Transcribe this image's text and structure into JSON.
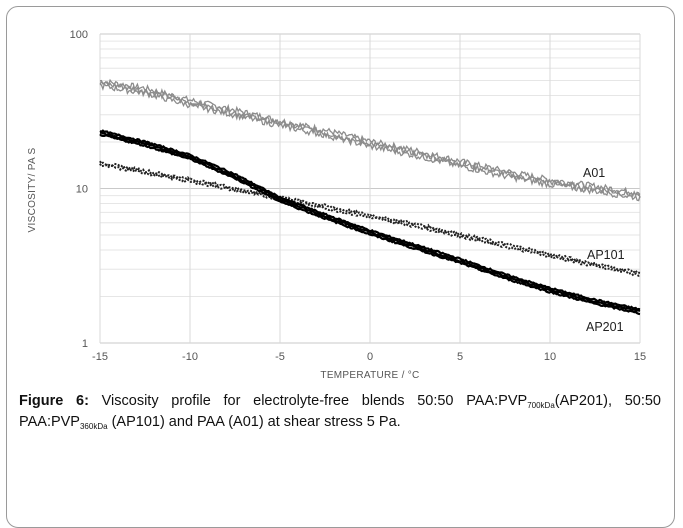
{
  "chart_data": {
    "type": "line",
    "xlabel": "TEMPERATURE / °C",
    "ylabel": "VISCOSITY/ PA S",
    "xlim": [
      -15,
      15
    ],
    "ylim": [
      1,
      100
    ],
    "yscale": "log",
    "grid": true,
    "x_ticks": [
      "-15",
      "-10",
      "-5",
      "0",
      "5",
      "10",
      "15"
    ],
    "y_ticks": [
      "1",
      "10",
      "100"
    ],
    "series": [
      {
        "name": "A01",
        "color": "#8c8c8c",
        "x": [
          -15,
          -12.5,
          -10,
          -7.5,
          -5,
          -2.5,
          0,
          2.5,
          5,
          7.5,
          10,
          12.5,
          15
        ],
        "y": [
          48,
          43,
          36,
          31,
          26.5,
          23,
          19.5,
          17,
          14.5,
          12.5,
          11,
          10,
          9
        ]
      },
      {
        "name": "AP101",
        "color": "#222222",
        "x": [
          -15,
          -12.5,
          -10,
          -7.5,
          -5,
          -2.5,
          0,
          2.5,
          5,
          7.5,
          10,
          12.5,
          15
        ],
        "y": [
          14.5,
          12.8,
          11.3,
          9.9,
          8.7,
          7.6,
          6.6,
          5.8,
          5.0,
          4.3,
          3.7,
          3.2,
          2.8
        ]
      },
      {
        "name": "AP201",
        "color": "#000000",
        "x": [
          -15,
          -12.5,
          -10,
          -7.5,
          -5,
          -2.5,
          0,
          2.5,
          5,
          7.5,
          10,
          12.5,
          15
        ],
        "y": [
          23,
          19.5,
          16,
          12,
          8.5,
          6.6,
          5.2,
          4.2,
          3.4,
          2.7,
          2.2,
          1.85,
          1.6
        ]
      }
    ]
  },
  "caption": {
    "label": "Figure 6:",
    "t1": " Viscosity profile for electrolyte-free blends 50:50 PAA:PVP",
    "s1": "700kDa",
    "t2": "(AP201), 50:50 PAA:PVP",
    "s2": "360kDa",
    "t3": " (AP101) and PAA (A01) at shear stress 5 Pa."
  }
}
